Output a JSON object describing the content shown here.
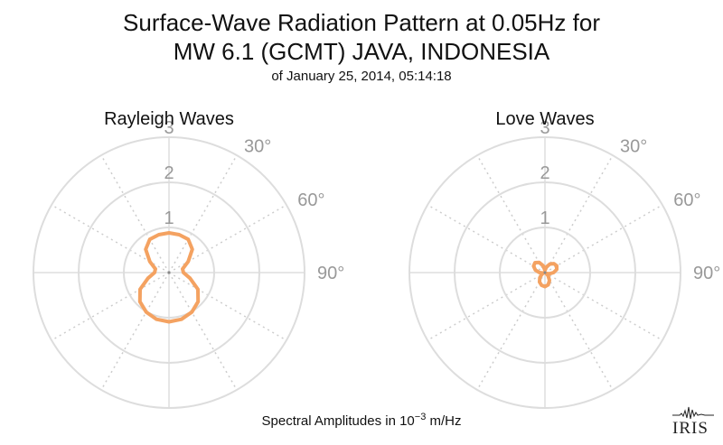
{
  "header": {
    "title_line1": "Surface-Wave Radiation Pattern at 0.05Hz for",
    "title_line2": "MW 6.1 (GCMT) JAVA, INDONESIA",
    "subtitle": "of January 25, 2014, 05:14:18"
  },
  "footer": {
    "label_prefix": "Spectral Amplitudes in ",
    "label_base": "10",
    "label_exp": "−3",
    "label_unit": " m/Hz"
  },
  "logo": {
    "text": "IRIS"
  },
  "colors": {
    "pattern": "#F4A261",
    "grid": "#dddddd",
    "grid_dotted": "#cccccc",
    "tick_label": "#999999"
  },
  "chart_data": [
    {
      "type": "polar-line",
      "title": "Rayleigh Waves",
      "radial_ticks": [
        "1",
        "2",
        "3"
      ],
      "rlim": [
        0,
        3
      ],
      "angle_labels": [
        "30°",
        "60°",
        "90°"
      ],
      "angle_step_deg": 30,
      "grid": true,
      "series": [
        {
          "theta_deg": [
            0,
            15,
            30,
            45,
            60,
            75,
            90,
            105,
            120,
            135,
            150,
            165,
            180,
            195,
            210,
            225,
            240,
            255,
            270,
            285,
            300,
            315,
            330,
            345,
            360
          ],
          "r": [
            0.88,
            0.87,
            0.85,
            0.73,
            0.49,
            0.31,
            0.32,
            0.48,
            0.74,
            0.91,
            1.01,
            1.07,
            1.09,
            1.07,
            1.01,
            0.91,
            0.74,
            0.48,
            0.32,
            0.31,
            0.49,
            0.73,
            0.85,
            0.87,
            0.88
          ]
        }
      ]
    },
    {
      "type": "polar-line",
      "title": "Love Waves",
      "radial_ticks": [
        "1",
        "2",
        "3"
      ],
      "rlim": [
        0,
        3
      ],
      "angle_labels": [
        "30°",
        "60°",
        "90°"
      ],
      "angle_step_deg": 30,
      "grid": true,
      "series": [
        {
          "theta_deg": [
            0,
            15,
            30,
            45,
            60,
            75,
            90,
            105,
            120,
            135,
            150,
            165,
            180,
            195,
            210,
            225,
            240,
            255,
            270,
            285,
            300,
            315,
            330,
            345,
            360
          ],
          "r": [
            0.05,
            0.13,
            0.22,
            0.28,
            0.3,
            0.27,
            0.19,
            0.1,
            0.03,
            0.1,
            0.2,
            0.28,
            0.31,
            0.29,
            0.24,
            0.16,
            0.08,
            0.04,
            0.12,
            0.22,
            0.29,
            0.31,
            0.26,
            0.16,
            0.05
          ]
        }
      ]
    }
  ]
}
